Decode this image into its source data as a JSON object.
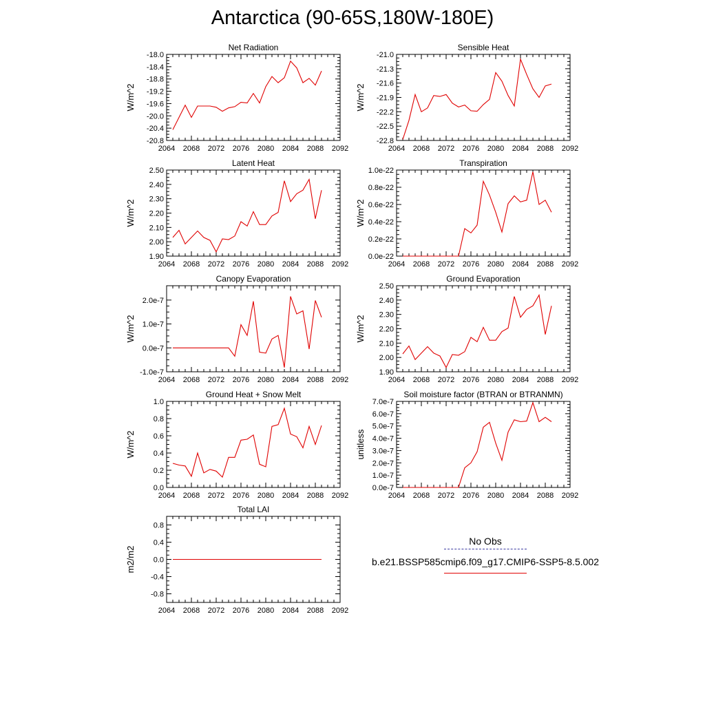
{
  "title": "Antarctica (90-65S,180W-180E)",
  "legend": {
    "obs_label": "No Obs",
    "run_label": "b.e21.BSSP585cmip6.f09_g17.CMIP6-SSP5-8.5.002",
    "obs_color": "#3a3aa0",
    "run_color": "#e00000"
  },
  "chart_data": [
    {
      "type": "line",
      "title": "Net Radiation",
      "ylabel": "W/m^2",
      "xlim": [
        2064,
        2092
      ],
      "xticks": [
        "2064",
        "2068",
        "2072",
        "2076",
        "2080",
        "2084",
        "2088",
        "2092"
      ],
      "ylim": [
        -20.8,
        -18.0
      ],
      "yticks": [
        "-18.0",
        "-18.4",
        "-18.8",
        "-19.2",
        "-19.6",
        "-20.0",
        "-20.4",
        "-20.8"
      ],
      "ytick_values": [
        -18.0,
        -18.4,
        -18.8,
        -19.2,
        -19.6,
        -20.0,
        -20.4,
        -20.8
      ],
      "x": [
        2065,
        2066,
        2067,
        2068,
        2069,
        2070,
        2071,
        2072,
        2073,
        2074,
        2075,
        2076,
        2077,
        2078,
        2079,
        2080,
        2081,
        2082,
        2083,
        2084,
        2085,
        2086,
        2087,
        2088,
        2089
      ],
      "values": [
        -20.45,
        -20.05,
        -19.65,
        -20.05,
        -19.68,
        -19.68,
        -19.68,
        -19.72,
        -19.85,
        -19.74,
        -19.7,
        -19.56,
        -19.58,
        -19.27,
        -19.58,
        -19.05,
        -18.72,
        -18.92,
        -18.76,
        -18.22,
        -18.44,
        -18.92,
        -18.78,
        -19.0,
        -18.54
      ]
    },
    {
      "type": "line",
      "title": "Sensible Heat",
      "ylabel": "W/m^2",
      "xlim": [
        2064,
        2092
      ],
      "xticks": [
        "2064",
        "2068",
        "2072",
        "2076",
        "2080",
        "2084",
        "2088",
        "2092"
      ],
      "ylim": [
        -22.8,
        -21.0
      ],
      "yticks": [
        "-21.0",
        "-21.3",
        "-21.6",
        "-21.9",
        "-22.2",
        "-22.5",
        "-22.8"
      ],
      "ytick_values": [
        -21.0,
        -21.3,
        -21.6,
        -21.9,
        -22.2,
        -22.5,
        -22.8
      ],
      "x": [
        2065,
        2066,
        2067,
        2068,
        2069,
        2070,
        2071,
        2072,
        2073,
        2074,
        2075,
        2076,
        2077,
        2078,
        2079,
        2080,
        2081,
        2082,
        2083,
        2084,
        2085,
        2086,
        2087,
        2088,
        2089
      ],
      "values": [
        -22.78,
        -22.38,
        -21.84,
        -22.2,
        -22.12,
        -21.86,
        -21.88,
        -21.84,
        -22.02,
        -22.1,
        -22.06,
        -22.18,
        -22.19,
        -22.05,
        -21.94,
        -21.38,
        -21.56,
        -21.86,
        -22.08,
        -21.1,
        -21.42,
        -21.72,
        -21.9,
        -21.66,
        -21.62
      ]
    },
    {
      "type": "line",
      "title": "Latent Heat",
      "ylabel": "W/m^2",
      "xlim": [
        2064,
        2092
      ],
      "xticks": [
        "2064",
        "2068",
        "2072",
        "2076",
        "2080",
        "2084",
        "2088",
        "2092"
      ],
      "ylim": [
        1.9,
        2.5
      ],
      "yticks": [
        "2.50",
        "2.40",
        "2.30",
        "2.20",
        "2.10",
        "2.00",
        "1.90"
      ],
      "ytick_values": [
        2.5,
        2.4,
        2.3,
        2.2,
        2.1,
        2.0,
        1.9
      ],
      "x": [
        2065,
        2066,
        2067,
        2068,
        2069,
        2070,
        2071,
        2072,
        2073,
        2074,
        2075,
        2076,
        2077,
        2078,
        2079,
        2080,
        2081,
        2082,
        2083,
        2084,
        2085,
        2086,
        2087,
        2088,
        2089
      ],
      "values": [
        2.03,
        2.08,
        1.985,
        2.03,
        2.075,
        2.03,
        2.01,
        1.93,
        2.02,
        2.015,
        2.04,
        2.14,
        2.11,
        2.21,
        2.12,
        2.12,
        2.18,
        2.205,
        2.425,
        2.28,
        2.335,
        2.36,
        2.435,
        2.16,
        2.36
      ]
    },
    {
      "type": "line",
      "title": "Transpiration",
      "ylabel": "W/m^2",
      "xlim": [
        2064,
        2092
      ],
      "xticks": [
        "2064",
        "2068",
        "2072",
        "2076",
        "2080",
        "2084",
        "2088",
        "2092"
      ],
      "ylim": [
        0,
        1e-22
      ],
      "yticks": [
        "1.0e-22",
        "0.8e-22",
        "0.6e-22",
        "0.4e-22",
        "0.2e-22",
        "0.0e-22"
      ],
      "ytick_values": [
        1e-22,
        8e-23,
        6e-23,
        4e-23,
        2e-23,
        0.0
      ],
      "x": [
        2065,
        2066,
        2067,
        2068,
        2069,
        2070,
        2071,
        2072,
        2073,
        2074,
        2075,
        2076,
        2077,
        2078,
        2079,
        2080,
        2081,
        2082,
        2083,
        2084,
        2085,
        2086,
        2087,
        2088,
        2089
      ],
      "values": [
        0,
        0,
        0,
        0,
        0,
        0,
        0,
        0,
        0,
        0,
        3.2e-23,
        2.7e-23,
        3.6e-23,
        8.7e-23,
        7.1e-23,
        5.1e-23,
        2.8e-23,
        6.1e-23,
        7e-23,
        6.3e-23,
        6.5e-23,
        9.8e-23,
        6e-23,
        6.5e-23,
        5.1e-23
      ]
    },
    {
      "type": "line",
      "title": "Canopy Evaporation",
      "ylabel": "W/m^2",
      "xlim": [
        2064,
        2092
      ],
      "xticks": [
        "2064",
        "2068",
        "2072",
        "2076",
        "2080",
        "2084",
        "2088",
        "2092"
      ],
      "ylim": [
        -1e-07,
        2.6e-07
      ],
      "yticks": [
        "2.0e-7",
        "1.0e-7",
        "0.0e-7",
        "-1.0e-7"
      ],
      "ytick_values": [
        2e-07,
        1e-07,
        0.0,
        -1e-07
      ],
      "x": [
        2065,
        2066,
        2067,
        2068,
        2069,
        2070,
        2071,
        2072,
        2073,
        2074,
        2075,
        2076,
        2077,
        2078,
        2079,
        2080,
        2081,
        2082,
        2083,
        2084,
        2085,
        2086,
        2087,
        2088,
        2089
      ],
      "values": [
        0,
        0,
        0,
        0,
        0,
        0,
        0,
        0,
        0,
        0,
        -3.5e-08,
        9.7e-08,
        5.2e-08,
        1.95e-07,
        -1.8e-08,
        -2.2e-08,
        3.7e-08,
        5.2e-08,
        -8.2e-08,
        2.15e-07,
        1.42e-07,
        1.55e-07,
        -5e-09,
        1.98e-07,
        1.28e-07
      ]
    },
    {
      "type": "line",
      "title": "Ground Evaporation",
      "ylabel": "W/m^2",
      "xlim": [
        2064,
        2092
      ],
      "xticks": [
        "2064",
        "2068",
        "2072",
        "2076",
        "2080",
        "2084",
        "2088",
        "2092"
      ],
      "ylim": [
        1.9,
        2.5
      ],
      "yticks": [
        "2.50",
        "2.40",
        "2.30",
        "2.20",
        "2.10",
        "2.00",
        "1.90"
      ],
      "ytick_values": [
        2.5,
        2.4,
        2.3,
        2.2,
        2.1,
        2.0,
        1.9
      ],
      "x": [
        2065,
        2066,
        2067,
        2068,
        2069,
        2070,
        2071,
        2072,
        2073,
        2074,
        2075,
        2076,
        2077,
        2078,
        2079,
        2080,
        2081,
        2082,
        2083,
        2084,
        2085,
        2086,
        2087,
        2088,
        2089
      ],
      "values": [
        2.025,
        2.08,
        1.985,
        2.03,
        2.075,
        2.03,
        2.01,
        1.93,
        2.02,
        2.015,
        2.04,
        2.14,
        2.11,
        2.21,
        2.12,
        2.12,
        2.18,
        2.205,
        2.425,
        2.28,
        2.335,
        2.36,
        2.435,
        2.16,
        2.36
      ]
    },
    {
      "type": "line",
      "title": "Ground Heat + Snow Melt",
      "ylabel": "W/m^2",
      "xlim": [
        2064,
        2092
      ],
      "xticks": [
        "2064",
        "2068",
        "2072",
        "2076",
        "2080",
        "2084",
        "2088",
        "2092"
      ],
      "ylim": [
        0,
        1.0
      ],
      "yticks": [
        "1.0",
        "0.8",
        "0.6",
        "0.4",
        "0.2",
        "0.0"
      ],
      "ytick_values": [
        1.0,
        0.8,
        0.6,
        0.4,
        0.2,
        0.0
      ],
      "x": [
        2065,
        2066,
        2067,
        2068,
        2069,
        2070,
        2071,
        2072,
        2073,
        2074,
        2075,
        2076,
        2077,
        2078,
        2079,
        2080,
        2081,
        2082,
        2083,
        2084,
        2085,
        2086,
        2087,
        2088,
        2089
      ],
      "values": [
        0.28,
        0.26,
        0.25,
        0.13,
        0.4,
        0.17,
        0.21,
        0.19,
        0.12,
        0.35,
        0.35,
        0.55,
        0.56,
        0.61,
        0.27,
        0.24,
        0.71,
        0.73,
        0.92,
        0.62,
        0.59,
        0.46,
        0.71,
        0.5,
        0.72
      ]
    },
    {
      "type": "line",
      "title": "Soil moisture factor (BTRAN or BTRANMN)",
      "ylabel": "unitless",
      "xlim": [
        2064,
        2092
      ],
      "xticks": [
        "2064",
        "2068",
        "2072",
        "2076",
        "2080",
        "2084",
        "2088",
        "2092"
      ],
      "ylim": [
        0,
        7e-07
      ],
      "yticks": [
        "7.0e-7",
        "6.0e-7",
        "5.0e-7",
        "4.0e-7",
        "3.0e-7",
        "2.0e-7",
        "1.0e-7",
        "0.0e-7"
      ],
      "ytick_values": [
        7e-07,
        6e-07,
        5e-07,
        4e-07,
        3e-07,
        2e-07,
        1e-07,
        0.0
      ],
      "x": [
        2065,
        2066,
        2067,
        2068,
        2069,
        2070,
        2071,
        2072,
        2073,
        2074,
        2075,
        2076,
        2077,
        2078,
        2079,
        2080,
        2081,
        2082,
        2083,
        2084,
        2085,
        2086,
        2087,
        2088,
        2089
      ],
      "values": [
        0,
        0,
        0,
        0,
        0,
        0,
        0,
        0,
        0,
        0,
        1.6e-07,
        2e-07,
        2.9e-07,
        4.9e-07,
        5.3e-07,
        3.6e-07,
        2.2e-07,
        4.5e-07,
        5.5e-07,
        5.35e-07,
        5.4e-07,
        6.9e-07,
        5.35e-07,
        5.7e-07,
        5.35e-07
      ]
    },
    {
      "type": "line",
      "title": "Total LAI",
      "ylabel": "m2/m2",
      "xlim": [
        2064,
        2092
      ],
      "xticks": [
        "2064",
        "2068",
        "2072",
        "2076",
        "2080",
        "2084",
        "2088",
        "2092"
      ],
      "ylim": [
        -1.0,
        1.0
      ],
      "yticks": [
        "0.8",
        "0.4",
        "0.0",
        "-0.4",
        "-0.8"
      ],
      "ytick_values": [
        0.8,
        0.4,
        0.0,
        -0.4,
        -0.8
      ],
      "x": [
        2065,
        2066,
        2067,
        2068,
        2069,
        2070,
        2071,
        2072,
        2073,
        2074,
        2075,
        2076,
        2077,
        2078,
        2079,
        2080,
        2081,
        2082,
        2083,
        2084,
        2085,
        2086,
        2087,
        2088,
        2089
      ],
      "values": [
        0,
        0,
        0,
        0,
        0,
        0,
        0,
        0,
        0,
        0,
        0,
        0,
        0,
        0,
        0,
        0,
        0,
        0,
        0,
        0,
        0,
        0,
        0,
        0,
        0
      ]
    }
  ]
}
